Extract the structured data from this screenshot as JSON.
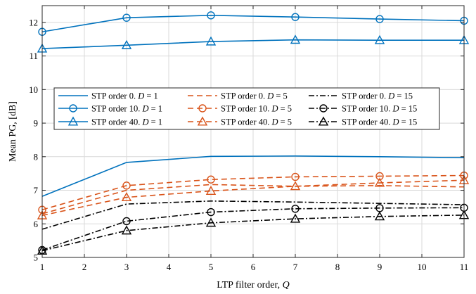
{
  "chart_data": {
    "type": "line",
    "title": "",
    "xlabel": "LTP filter order, ",
    "xlabel_var": "Q",
    "ylabel": "Mean PG, [dB]",
    "xlim": [
      1,
      11
    ],
    "ylim": [
      5,
      12.5
    ],
    "x_ticks": [
      1,
      2,
      3,
      4,
      5,
      6,
      7,
      8,
      9,
      10,
      11
    ],
    "y_ticks": [
      5,
      6,
      7,
      8,
      9,
      10,
      11,
      12
    ],
    "grid": true,
    "legend_position": "center, 3 columns",
    "colors": {
      "D1": "#0072bd",
      "D5": "#d95319",
      "D15": "#000000"
    },
    "x": [
      1,
      3,
      5,
      7,
      9,
      11
    ],
    "series": [
      {
        "name": "STP order 0. D = 1",
        "label_pre": "STP order 0. ",
        "D": "1",
        "color": "#0072bd",
        "dash": "solid",
        "marker": "none",
        "values": [
          6.82,
          7.83,
          8.01,
          8.02,
          8.0,
          7.97
        ]
      },
      {
        "name": "STP order 10. D = 1",
        "label_pre": "STP order 10. ",
        "D": "1",
        "color": "#0072bd",
        "dash": "solid",
        "marker": "circle",
        "values": [
          11.72,
          12.14,
          12.21,
          12.16,
          12.1,
          12.05
        ]
      },
      {
        "name": "STP order 40. D = 1",
        "label_pre": "STP order 40. ",
        "D": "1",
        "color": "#0072bd",
        "dash": "solid",
        "marker": "triangle",
        "values": [
          11.22,
          11.32,
          11.43,
          11.48,
          11.47,
          11.47
        ]
      },
      {
        "name": "STP order 0. D = 5",
        "label_pre": "STP order 0. ",
        "D": "5",
        "color": "#d95319",
        "dash": "dashed",
        "marker": "none",
        "values": [
          6.3,
          7.0,
          7.17,
          7.12,
          7.14,
          7.1
        ]
      },
      {
        "name": "STP order 10. D = 5",
        "label_pre": "STP order 10. ",
        "D": "5",
        "color": "#d95319",
        "dash": "dashed",
        "marker": "circle",
        "values": [
          6.42,
          7.14,
          7.32,
          7.4,
          7.42,
          7.44
        ]
      },
      {
        "name": "STP order 40. D = 5",
        "label_pre": "STP order 40. ",
        "D": "5",
        "color": "#d95319",
        "dash": "dashed",
        "marker": "triangle",
        "values": [
          6.25,
          6.79,
          6.98,
          7.12,
          7.22,
          7.3
        ]
      },
      {
        "name": "STP order 0. D = 15",
        "label_pre": "STP order 0. ",
        "D": "15",
        "color": "#000000",
        "dash": "dashdot",
        "marker": "none",
        "values": [
          5.84,
          6.59,
          6.68,
          6.65,
          6.61,
          6.57
        ]
      },
      {
        "name": "STP order 10. D = 15",
        "label_pre": "STP order 10. ",
        "D": "15",
        "color": "#000000",
        "dash": "dashdot",
        "marker": "circle",
        "values": [
          5.22,
          6.08,
          6.35,
          6.45,
          6.47,
          6.48
        ]
      },
      {
        "name": "STP order 40. D = 15",
        "label_pre": "STP order 40. ",
        "D": "15",
        "color": "#000000",
        "dash": "dashdot",
        "marker": "triangle",
        "values": [
          5.2,
          5.8,
          6.03,
          6.15,
          6.22,
          6.26
        ]
      }
    ]
  }
}
